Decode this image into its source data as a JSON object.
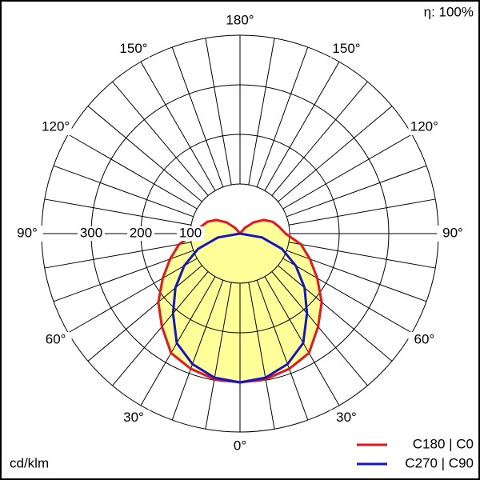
{
  "chart_data": {
    "type": "polar",
    "efficiency_label": "η: 100%",
    "unit_label": "cd/klm",
    "rlim": [
      0,
      400
    ],
    "radial_ticks": [
      100,
      200,
      300
    ],
    "spokes": [
      0,
      10,
      20,
      30,
      40,
      50,
      60,
      70,
      80,
      90,
      100,
      110,
      120,
      130,
      140,
      150,
      160,
      170,
      180
    ],
    "angle_ticks": [
      {
        "value": 0,
        "label": "0°"
      },
      {
        "value": 30,
        "label": "30°"
      },
      {
        "value": 60,
        "label": "60°"
      },
      {
        "value": 90,
        "label": "90°"
      },
      {
        "value": 120,
        "label": "120°"
      },
      {
        "value": 150,
        "label": "150°"
      },
      {
        "value": 180,
        "label": "180°"
      }
    ],
    "fill_color": "#ffff99",
    "angles": [
      0,
      10,
      20,
      30,
      40,
      50,
      60,
      70,
      80,
      90,
      100,
      110,
      120,
      130,
      140,
      150,
      160,
      170,
      180
    ],
    "series": [
      {
        "name": "C180 | C0",
        "color": "#e8141e",
        "values": [
          300,
          298,
          290,
          278,
          245,
          215,
          180,
          150,
          125,
          92,
          80,
          70,
          55,
          35,
          15,
          0,
          0,
          0,
          0
        ]
      },
      {
        "name": "C270 | C90",
        "color": "#1414c8",
        "values": [
          300,
          295,
          280,
          255,
          210,
          170,
          130,
          90,
          45,
          0,
          0,
          0,
          0,
          0,
          0,
          0,
          0,
          0,
          0
        ]
      }
    ]
  }
}
